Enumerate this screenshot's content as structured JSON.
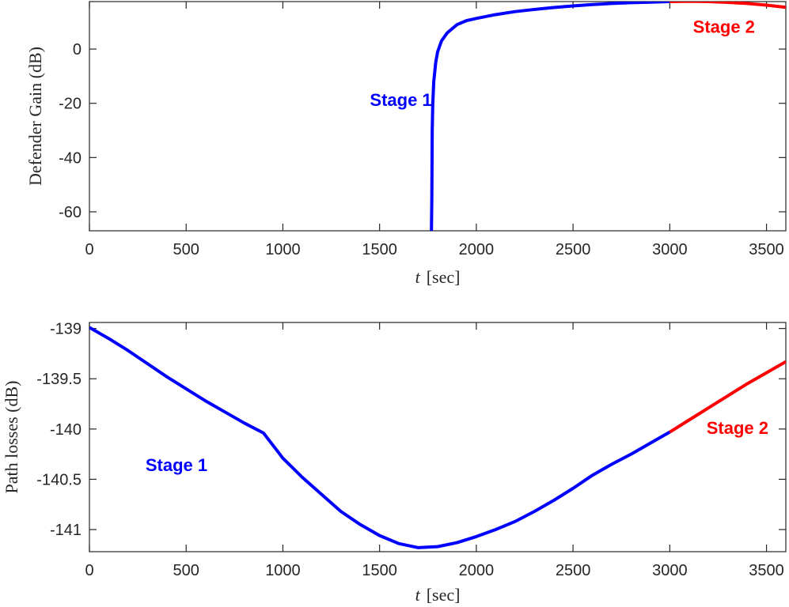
{
  "chart_data": [
    {
      "type": "line",
      "xlabel_var": "t",
      "xlabel_unit": "[sec]",
      "ylabel": "Defender Gain (dB)",
      "xlim": [
        0,
        3600
      ],
      "ylim": [
        -67,
        17.5
      ],
      "xticks": [
        "0",
        "500",
        "1000",
        "1500",
        "2000",
        "2500",
        "3000",
        "3500"
      ],
      "xtick_values": [
        0,
        500,
        1000,
        1500,
        2000,
        2500,
        3000,
        3500
      ],
      "yticks": [
        "0",
        "-20",
        "-40",
        "-60"
      ],
      "ytick_values": [
        0,
        -20,
        -40,
        -60
      ],
      "grid": false,
      "series": [
        {
          "color": "#0000ff",
          "x": [
            1768,
            1770,
            1772,
            1775,
            1780,
            1790,
            1800,
            1820,
            1850,
            1900,
            1950,
            2000,
            2100,
            2200,
            2300,
            2400,
            2500,
            2600,
            2700,
            2800,
            2900,
            3000
          ],
          "y": [
            -67,
            -55,
            -30,
            -20,
            -12,
            -5,
            -1,
            3,
            6,
            9,
            10.5,
            11.3,
            12.7,
            13.8,
            14.6,
            15.3,
            15.9,
            16.4,
            16.8,
            17.1,
            17.3,
            17.5
          ]
        },
        {
          "color": "#ff0000",
          "x": [
            3000,
            3100,
            3200,
            3300,
            3400,
            3500,
            3600
          ],
          "y": [
            17.5,
            17.6,
            17.5,
            17.2,
            16.8,
            16.2,
            15.4
          ]
        }
      ],
      "annotations": [
        {
          "text": "Stage 1",
          "x": 1610,
          "y": -21,
          "color": "#0000ff"
        },
        {
          "text": "Stage 2",
          "x": 3280,
          "y": 6,
          "color": "#ff0000"
        }
      ]
    },
    {
      "type": "line",
      "xlabel_var": "t",
      "xlabel_unit": "[sec]",
      "ylabel": "Path losses (dB)",
      "xlim": [
        0,
        3600
      ],
      "ylim": [
        -141.22,
        -138.94
      ],
      "xticks": [
        "0",
        "500",
        "1000",
        "1500",
        "2000",
        "2500",
        "3000",
        "3500"
      ],
      "xtick_values": [
        0,
        500,
        1000,
        1500,
        2000,
        2500,
        3000,
        3500
      ],
      "yticks": [
        "-139",
        "-139.5",
        "-140",
        "-140.5",
        "-141"
      ],
      "ytick_values": [
        -139,
        -139.5,
        -140,
        -140.5,
        -141
      ],
      "grid": false,
      "series": [
        {
          "color": "#0000ff",
          "x": [
            0,
            100,
            200,
            300,
            400,
            500,
            600,
            700,
            800,
            900,
            1000,
            1100,
            1200,
            1300,
            1400,
            1500,
            1600,
            1700,
            1800,
            1900,
            2000,
            2100,
            2200,
            2300,
            2400,
            2500,
            2600,
            2700,
            2800,
            2900,
            3000
          ],
          "y": [
            -138.99,
            -139.1,
            -139.22,
            -139.35,
            -139.48,
            -139.6,
            -139.72,
            -139.83,
            -139.94,
            -140.04,
            -140.29,
            -140.48,
            -140.65,
            -140.82,
            -140.95,
            -141.06,
            -141.14,
            -141.18,
            -141.17,
            -141.13,
            -141.07,
            -141.0,
            -140.92,
            -140.82,
            -140.71,
            -140.59,
            -140.46,
            -140.35,
            -140.25,
            -140.14,
            -140.03
          ],
          "note": ""
        },
        {
          "color": "#ff0000",
          "x": [
            3000,
            3100,
            3200,
            3300,
            3400,
            3500,
            3600
          ],
          "y": [
            -140.03,
            -139.91,
            -139.79,
            -139.67,
            -139.55,
            -139.44,
            -139.33
          ]
        }
      ],
      "annotations": [
        {
          "text": "Stage 1",
          "x": 450,
          "y": -140.42,
          "color": "#0000ff"
        },
        {
          "text": "Stage 2",
          "x": 3350,
          "y": -140.05,
          "color": "#ff0000"
        }
      ]
    }
  ]
}
